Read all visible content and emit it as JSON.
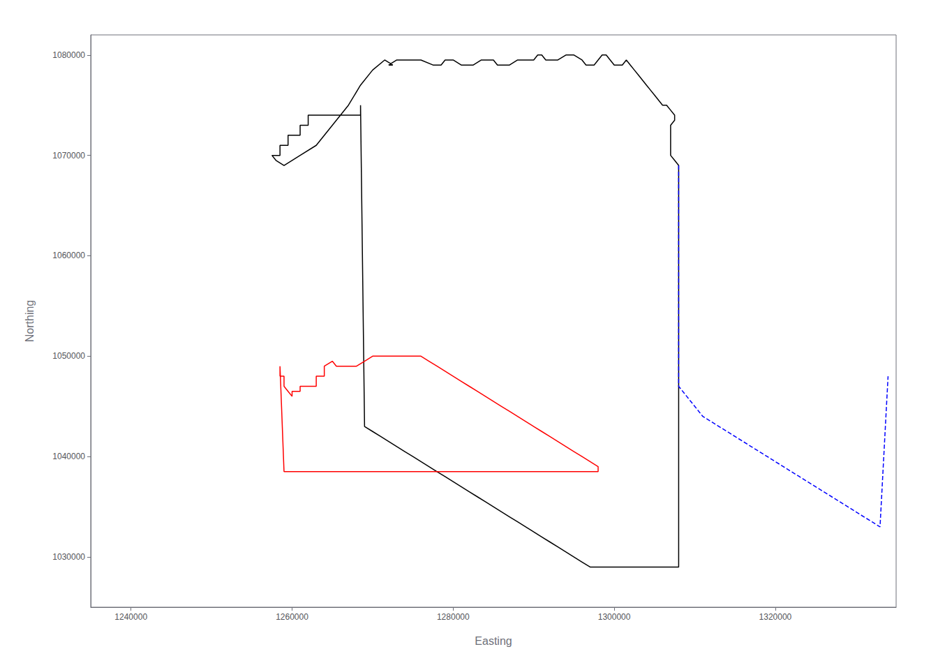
{
  "chart_data": {
    "type": "line",
    "xlabel": "Easting",
    "ylabel": "Northing",
    "xlim": [
      1235000,
      1335000
    ],
    "ylim": [
      1025000,
      1082000
    ],
    "xticks": [
      1240000,
      1260000,
      1280000,
      1300000,
      1320000
    ],
    "yticks": [
      1030000,
      1040000,
      1050000,
      1060000,
      1070000,
      1080000
    ],
    "grid": false,
    "series": [
      {
        "color": "#000000",
        "line_style": "solid",
        "x": [
          1268500,
          1268500,
          1262000,
          1262000,
          1261000,
          1261000,
          1259500,
          1259500,
          1258500,
          1258500,
          1257500,
          1258000,
          1259000,
          1261000,
          1263000,
          1265000,
          1267000,
          1268500,
          1270000,
          1271500,
          1272500,
          1272000,
          1273000,
          1275000,
          1276000,
          1277500,
          1278500,
          1279000,
          1280000,
          1281000,
          1282000,
          1282500,
          1283500,
          1284000,
          1285000,
          1285500,
          1286500,
          1287000,
          1288000,
          1288500,
          1289500,
          1290000,
          1290500,
          1291000,
          1291500,
          1292000,
          1293000,
          1294000,
          1295000,
          1296000,
          1296500,
          1297000,
          1297500,
          1298000,
          1298500,
          1299000,
          1299500,
          1300000,
          1300500,
          1301000,
          1301500,
          1302000,
          1302500,
          1303000,
          1303500,
          1304000,
          1304500,
          1305000,
          1305500,
          1306000,
          1306500,
          1307000,
          1307500,
          1307500,
          1307000,
          1307000,
          1307000,
          1307000,
          1307000,
          1307000,
          1307000,
          1307500,
          1308000,
          1308000,
          1308000,
          1308000,
          1308000,
          1308000,
          1308000,
          1308000,
          1308000,
          1308000,
          1308000,
          1308000,
          1308000,
          1308000,
          1308000,
          1308000,
          1308000,
          1308000,
          1308000,
          1307000,
          1306000,
          1305000,
          1304000,
          1303000,
          1302000,
          1301000,
          1300000,
          1299000,
          1298000,
          1297000,
          1296000,
          1295000,
          1294000,
          1293000,
          1292000,
          1291000,
          1290000,
          1289000,
          1288000,
          1287000,
          1286000,
          1285000,
          1284000,
          1283000,
          1282000,
          1281000,
          1280000,
          1279000,
          1278000,
          1277000,
          1276000,
          1275000,
          1274000,
          1273000,
          1272000,
          1271000,
          1270000,
          1269000,
          1268500
        ],
        "values": [
          1075000,
          1074000,
          1074000,
          1073000,
          1073000,
          1072000,
          1072000,
          1071000,
          1071000,
          1070000,
          1070000,
          1069500,
          1069000,
          1070000,
          1071000,
          1073000,
          1075000,
          1077000,
          1078500,
          1079500,
          1079000,
          1079000,
          1079500,
          1079500,
          1079500,
          1079000,
          1079000,
          1079500,
          1079500,
          1079000,
          1079000,
          1079000,
          1079500,
          1079500,
          1079500,
          1079000,
          1079000,
          1079000,
          1079500,
          1079500,
          1079500,
          1079500,
          1080000,
          1080000,
          1079500,
          1079500,
          1079500,
          1080000,
          1080000,
          1079500,
          1079000,
          1079000,
          1079000,
          1079500,
          1080000,
          1080000,
          1079500,
          1079000,
          1079000,
          1079000,
          1079500,
          1079000,
          1078500,
          1078000,
          1077500,
          1077000,
          1076500,
          1076000,
          1075500,
          1075000,
          1075000,
          1074500,
          1074000,
          1073500,
          1073000,
          1072500,
          1072000,
          1071500,
          1071000,
          1070500,
          1070000,
          1069500,
          1069000,
          1069000,
          1069000,
          1069000,
          1069000,
          1069000,
          1069000,
          1069000,
          1069000,
          1069000,
          1069000,
          1069000,
          1069000,
          1069000,
          1069000,
          1069000,
          1069000,
          1029000,
          1029000,
          1029000,
          1029000,
          1029000,
          1029000,
          1029000,
          1029000,
          1029000,
          1029000,
          1029000,
          1029000,
          1029000,
          1029500,
          1030000,
          1030500,
          1031000,
          1031500,
          1032000,
          1032500,
          1033000,
          1033500,
          1034000,
          1034500,
          1035000,
          1035500,
          1036000,
          1036500,
          1037000,
          1037500,
          1038000,
          1038500,
          1039000,
          1039500,
          1040000,
          1040500,
          1041000,
          1041500,
          1042000,
          1042500,
          1043000,
          1075000
        ]
      },
      {
        "color": "#ff0000",
        "line_style": "solid",
        "x": [
          1258500,
          1258500,
          1259000,
          1259000,
          1259500,
          1260000,
          1260000,
          1261000,
          1261000,
          1262000,
          1263000,
          1263000,
          1264000,
          1264000,
          1265000,
          1265500,
          1266000,
          1267000,
          1268000,
          1269000,
          1270000,
          1271000,
          1272000,
          1273000,
          1274000,
          1275000,
          1276000,
          1277000,
          1278000,
          1279000,
          1280000,
          1281000,
          1282000,
          1283000,
          1284000,
          1285000,
          1286000,
          1287000,
          1288000,
          1289000,
          1290000,
          1291000,
          1292000,
          1293000,
          1294000,
          1295000,
          1296000,
          1297000,
          1298000,
          1298000,
          1297500,
          1297000,
          1296500,
          1296000,
          1295500,
          1295000,
          1294500,
          1294000,
          1293000,
          1292000,
          1291000,
          1290000,
          1289000,
          1288000,
          1287000,
          1286000,
          1285000,
          1284000,
          1283000,
          1282000,
          1281000,
          1280000,
          1279000,
          1278000,
          1277000,
          1276000,
          1275000,
          1274000,
          1273000,
          1272000,
          1271000,
          1270000,
          1269000,
          1268000,
          1267000,
          1266000,
          1265000,
          1264000,
          1263000,
          1262000,
          1261000,
          1260000,
          1259000,
          1258500
        ],
        "values": [
          1049000,
          1048000,
          1048000,
          1047000,
          1046500,
          1046000,
          1046500,
          1046500,
          1047000,
          1047000,
          1047000,
          1048000,
          1048000,
          1049000,
          1049500,
          1049000,
          1049000,
          1049000,
          1049000,
          1049500,
          1050000,
          1050000,
          1050000,
          1050000,
          1050000,
          1050000,
          1050000,
          1049500,
          1049000,
          1048500,
          1048000,
          1047500,
          1047000,
          1046500,
          1046000,
          1045500,
          1045000,
          1044500,
          1044000,
          1043500,
          1043000,
          1042500,
          1042000,
          1041500,
          1041000,
          1040500,
          1040000,
          1039500,
          1039000,
          1038500,
          1038500,
          1038500,
          1038500,
          1038500,
          1038500,
          1038500,
          1038500,
          1038500,
          1038500,
          1038500,
          1038500,
          1038500,
          1038500,
          1038500,
          1038500,
          1038500,
          1038500,
          1038500,
          1038500,
          1038500,
          1038500,
          1038500,
          1038500,
          1038500,
          1038500,
          1038500,
          1038500,
          1038500,
          1038500,
          1038500,
          1038500,
          1038500,
          1038500,
          1038500,
          1038500,
          1038500,
          1038500,
          1038500,
          1038500,
          1038500,
          1038500,
          1038500,
          1038500,
          1049000
        ]
      },
      {
        "color": "#0000ff",
        "line_style": "dashed",
        "x": [
          1308000,
          1308000,
          1308000,
          1308000,
          1308000,
          1308000,
          1308000,
          1308000,
          1308000,
          1308000,
          1308000,
          1308000,
          1308000,
          1308000,
          1308000,
          1308000,
          1308000,
          1308000,
          1308000,
          1308000,
          1308000,
          1308000,
          1308000,
          1309000,
          1310000,
          1311000,
          1312000,
          1313000,
          1314000,
          1315000,
          1316000,
          1317000,
          1318000,
          1319000,
          1320000,
          1321000,
          1322000,
          1323000,
          1324000,
          1325000,
          1326000,
          1327000,
          1328000,
          1329000,
          1330000,
          1331000,
          1332000,
          1333000,
          1334000
        ],
        "values": [
          1069000,
          1068000,
          1067000,
          1066000,
          1065000,
          1064000,
          1063000,
          1062000,
          1061000,
          1060000,
          1059000,
          1058000,
          1057000,
          1056000,
          1055000,
          1054000,
          1053000,
          1052000,
          1051000,
          1050000,
          1049000,
          1048000,
          1047000,
          1046000,
          1045000,
          1044000,
          1043500,
          1043000,
          1042500,
          1042000,
          1041500,
          1041000,
          1040500,
          1040000,
          1039500,
          1039000,
          1038500,
          1038000,
          1037500,
          1037000,
          1036500,
          1036000,
          1035500,
          1035000,
          1034500,
          1034000,
          1033500,
          1033000,
          1048000
        ]
      }
    ]
  }
}
